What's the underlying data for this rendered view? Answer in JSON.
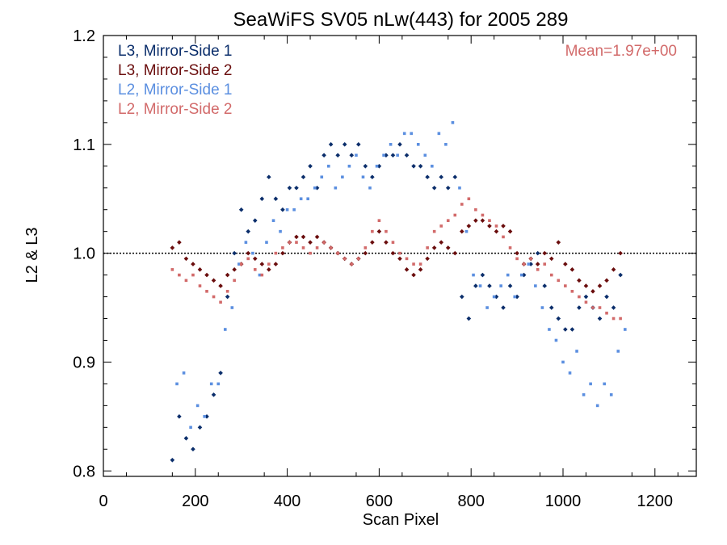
{
  "chart_data": {
    "type": "scatter",
    "title": "SeaWiFS SV05 nLw(443) for 2005 289",
    "xlabel": "Scan Pixel",
    "ylabel": "L2 & L3",
    "xlim": [
      0,
      1290
    ],
    "ylim": [
      0.795,
      1.2
    ],
    "xticks": [
      "0",
      "200",
      "400",
      "600",
      "800",
      "1000",
      "1200"
    ],
    "yticks": [
      "0.8",
      "0.9",
      "1.0",
      "1.1",
      "1.2"
    ],
    "grid": false,
    "reference_line": 1.0,
    "annotation": "Mean=1.97e+00",
    "annotation_color": "#d26a6a",
    "legend_position": "top-left",
    "series": [
      {
        "name": "L3, Mirror-Side 1",
        "color": "#0b2e6b",
        "marker": "diamond",
        "points": [
          [
            150,
            0.81
          ],
          [
            165,
            0.85
          ],
          [
            180,
            0.83
          ],
          [
            195,
            0.82
          ],
          [
            210,
            0.84
          ],
          [
            225,
            0.85
          ],
          [
            240,
            0.87
          ],
          [
            255,
            0.89
          ],
          [
            270,
            0.96
          ],
          [
            285,
            1.0
          ],
          [
            300,
            1.04
          ],
          [
            315,
            1.02
          ],
          [
            330,
            1.03
          ],
          [
            345,
            1.05
          ],
          [
            360,
            1.07
          ],
          [
            375,
            1.05
          ],
          [
            390,
            1.04
          ],
          [
            405,
            1.06
          ],
          [
            420,
            1.06
          ],
          [
            435,
            1.07
          ],
          [
            450,
            1.08
          ],
          [
            465,
            1.06
          ],
          [
            480,
            1.09
          ],
          [
            495,
            1.1
          ],
          [
            510,
            1.09
          ],
          [
            525,
            1.1
          ],
          [
            540,
            1.09
          ],
          [
            555,
            1.1
          ],
          [
            570,
            1.08
          ],
          [
            585,
            1.07
          ],
          [
            600,
            1.08
          ],
          [
            615,
            1.09
          ],
          [
            630,
            1.09
          ],
          [
            645,
            1.1
          ],
          [
            660,
            1.09
          ],
          [
            675,
            1.08
          ],
          [
            690,
            1.08
          ],
          [
            705,
            1.07
          ],
          [
            720,
            1.06
          ],
          [
            735,
            1.07
          ],
          [
            750,
            1.06
          ],
          [
            765,
            1.07
          ],
          [
            780,
            0.96
          ],
          [
            795,
            0.94
          ],
          [
            810,
            0.97
          ],
          [
            825,
            0.98
          ],
          [
            840,
            0.97
          ],
          [
            855,
            0.96
          ],
          [
            870,
            0.95
          ],
          [
            885,
            0.97
          ],
          [
            900,
            0.96
          ],
          [
            915,
            0.98
          ],
          [
            930,
            0.99
          ],
          [
            945,
            1.0
          ],
          [
            960,
            0.97
          ],
          [
            975,
            0.95
          ],
          [
            990,
            0.94
          ],
          [
            1005,
            0.93
          ],
          [
            1020,
            0.93
          ],
          [
            1035,
            0.95
          ],
          [
            1050,
            0.96
          ],
          [
            1065,
            0.95
          ],
          [
            1080,
            0.94
          ],
          [
            1095,
            0.96
          ],
          [
            1110,
            0.95
          ],
          [
            1125,
            0.98
          ]
        ]
      },
      {
        "name": "L3, Mirror-Side 2",
        "color": "#6a0d0d",
        "marker": "diamond",
        "points": [
          [
            150,
            1.005
          ],
          [
            165,
            1.01
          ],
          [
            180,
            0.995
          ],
          [
            195,
            0.99
          ],
          [
            210,
            0.985
          ],
          [
            225,
            0.98
          ],
          [
            240,
            0.975
          ],
          [
            255,
            0.97
          ],
          [
            270,
            0.98
          ],
          [
            285,
            0.985
          ],
          [
            300,
            0.99
          ],
          [
            315,
            1.0
          ],
          [
            330,
            0.995
          ],
          [
            345,
            0.99
          ],
          [
            360,
            0.985
          ],
          [
            375,
            0.99
          ],
          [
            390,
            1.0
          ],
          [
            405,
            1.01
          ],
          [
            420,
            1.015
          ],
          [
            435,
            1.015
          ],
          [
            450,
            1.01
          ],
          [
            465,
            1.015
          ],
          [
            480,
            1.01
          ],
          [
            495,
            1.005
          ],
          [
            510,
            1.0
          ],
          [
            525,
            0.995
          ],
          [
            540,
            0.99
          ],
          [
            555,
            0.995
          ],
          [
            570,
            1.0
          ],
          [
            585,
            1.01
          ],
          [
            600,
            1.02
          ],
          [
            615,
            1.01
          ],
          [
            630,
            1.0
          ],
          [
            645,
            0.995
          ],
          [
            660,
            0.985
          ],
          [
            675,
            0.98
          ],
          [
            690,
            0.985
          ],
          [
            705,
            0.995
          ],
          [
            720,
            1.005
          ],
          [
            735,
            1.01
          ],
          [
            750,
            1.005
          ],
          [
            765,
            1.0
          ],
          [
            780,
            1.02
          ],
          [
            795,
            1.025
          ],
          [
            810,
            1.03
          ],
          [
            825,
            1.03
          ],
          [
            840,
            1.025
          ],
          [
            855,
            1.02
          ],
          [
            870,
            1.025
          ],
          [
            885,
            1.02
          ],
          [
            900,
            1.0
          ],
          [
            915,
            0.99
          ],
          [
            930,
            0.995
          ],
          [
            945,
            0.99
          ],
          [
            960,
            1.0
          ],
          [
            975,
            0.995
          ],
          [
            990,
            1.01
          ],
          [
            1005,
            0.99
          ],
          [
            1020,
            0.985
          ],
          [
            1035,
            0.975
          ],
          [
            1050,
            0.97
          ],
          [
            1065,
            0.965
          ],
          [
            1080,
            0.97
          ],
          [
            1095,
            0.975
          ],
          [
            1110,
            0.985
          ],
          [
            1125,
            1.0
          ]
        ]
      },
      {
        "name": "L2, Mirror-Side 1",
        "color": "#5b8fe0",
        "marker": "square",
        "points": [
          [
            160,
            0.88
          ],
          [
            175,
            0.89
          ],
          [
            190,
            0.84
          ],
          [
            205,
            0.86
          ],
          [
            220,
            0.85
          ],
          [
            235,
            0.88
          ],
          [
            250,
            0.88
          ],
          [
            265,
            0.93
          ],
          [
            280,
            0.95
          ],
          [
            295,
            0.99
          ],
          [
            310,
            1.01
          ],
          [
            325,
            1.0
          ],
          [
            340,
            0.98
          ],
          [
            355,
            1.01
          ],
          [
            370,
            1.03
          ],
          [
            385,
            1.02
          ],
          [
            400,
            1.04
          ],
          [
            415,
            1.04
          ],
          [
            430,
            1.05
          ],
          [
            445,
            1.05
          ],
          [
            460,
            1.06
          ],
          [
            475,
            1.07
          ],
          [
            490,
            1.08
          ],
          [
            505,
            1.06
          ],
          [
            520,
            1.07
          ],
          [
            535,
            1.08
          ],
          [
            550,
            1.09
          ],
          [
            565,
            1.07
          ],
          [
            580,
            1.06
          ],
          [
            595,
            1.08
          ],
          [
            610,
            1.09
          ],
          [
            625,
            1.1
          ],
          [
            640,
            1.09
          ],
          [
            655,
            1.11
          ],
          [
            670,
            1.11
          ],
          [
            685,
            1.1
          ],
          [
            700,
            1.09
          ],
          [
            715,
            1.08
          ],
          [
            730,
            1.11
          ],
          [
            745,
            1.1
          ],
          [
            760,
            1.12
          ],
          [
            775,
            1.06
          ],
          [
            790,
            1.02
          ],
          [
            805,
            0.98
          ],
          [
            820,
            0.97
          ],
          [
            835,
            0.95
          ],
          [
            850,
            0.96
          ],
          [
            865,
            0.97
          ],
          [
            880,
            0.98
          ],
          [
            895,
            0.96
          ],
          [
            910,
            0.98
          ],
          [
            925,
            0.99
          ],
          [
            940,
            0.97
          ],
          [
            955,
            0.95
          ],
          [
            970,
            0.93
          ],
          [
            985,
            0.92
          ],
          [
            1000,
            0.9
          ],
          [
            1015,
            0.89
          ],
          [
            1030,
            0.91
          ],
          [
            1045,
            0.87
          ],
          [
            1060,
            0.88
          ],
          [
            1075,
            0.86
          ],
          [
            1090,
            0.88
          ],
          [
            1105,
            0.87
          ],
          [
            1120,
            0.91
          ],
          [
            1135,
            0.93
          ]
        ]
      },
      {
        "name": "L2, Mirror-Side 2",
        "color": "#d26a6a",
        "marker": "square",
        "points": [
          [
            150,
            0.985
          ],
          [
            165,
            0.98
          ],
          [
            180,
            0.975
          ],
          [
            195,
            0.98
          ],
          [
            210,
            0.97
          ],
          [
            225,
            0.965
          ],
          [
            240,
            0.96
          ],
          [
            255,
            0.955
          ],
          [
            270,
            0.965
          ],
          [
            285,
            0.975
          ],
          [
            300,
            0.99
          ],
          [
            315,
            0.995
          ],
          [
            330,
            0.985
          ],
          [
            345,
            0.98
          ],
          [
            360,
            0.99
          ],
          [
            375,
            1.0
          ],
          [
            390,
            1.005
          ],
          [
            405,
            1.01
          ],
          [
            420,
            1.01
          ],
          [
            435,
            1.005
          ],
          [
            450,
            1.0
          ],
          [
            465,
            1.005
          ],
          [
            480,
            1.01
          ],
          [
            495,
            1.005
          ],
          [
            510,
            1.0
          ],
          [
            525,
            0.995
          ],
          [
            540,
            0.99
          ],
          [
            555,
            0.995
          ],
          [
            570,
            1.005
          ],
          [
            585,
            1.02
          ],
          [
            600,
            1.03
          ],
          [
            615,
            1.02
          ],
          [
            630,
            1.01
          ],
          [
            645,
            1.0
          ],
          [
            660,
            0.995
          ],
          [
            675,
            0.99
          ],
          [
            690,
            0.99
          ],
          [
            705,
            1.005
          ],
          [
            720,
            1.02
          ],
          [
            735,
            1.025
          ],
          [
            750,
            1.03
          ],
          [
            765,
            1.035
          ],
          [
            780,
            1.045
          ],
          [
            795,
            1.05
          ],
          [
            810,
            1.04
          ],
          [
            825,
            1.035
          ],
          [
            840,
            1.03
          ],
          [
            855,
            1.025
          ],
          [
            870,
            1.015
          ],
          [
            885,
            1.005
          ],
          [
            900,
            0.995
          ],
          [
            915,
            0.99
          ],
          [
            930,
            0.995
          ],
          [
            945,
            0.985
          ],
          [
            960,
            0.99
          ],
          [
            975,
            0.98
          ],
          [
            990,
            0.975
          ],
          [
            1005,
            0.97
          ],
          [
            1020,
            0.965
          ],
          [
            1035,
            0.96
          ],
          [
            1050,
            0.955
          ],
          [
            1065,
            0.95
          ],
          [
            1080,
            0.95
          ],
          [
            1095,
            0.945
          ],
          [
            1110,
            0.94
          ],
          [
            1125,
            0.94
          ]
        ]
      }
    ]
  }
}
